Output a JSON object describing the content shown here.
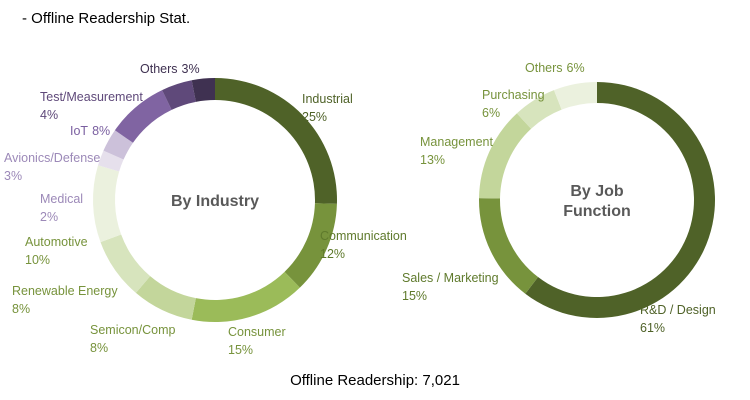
{
  "header": {
    "title": "- Offline Readership Stat."
  },
  "footer": {
    "text": "Offline Readership: 7,021"
  },
  "chart_data": [
    {
      "type": "pie",
      "center_label": [
        "By Industry"
      ],
      "categories": [
        "Industrial",
        "Communication",
        "Consumer",
        "Semicon/Comp",
        "Renewable Energy",
        "Automotive",
        "Medical",
        "Avionics/Defense",
        "IoT",
        "Test/Measurement",
        "Others"
      ],
      "values": [
        25,
        12,
        15,
        8,
        8,
        10,
        2,
        3,
        8,
        4,
        3
      ],
      "value_labels": [
        "25%",
        "12%",
        "15%",
        "8%",
        "8%",
        "10%",
        "2%",
        "3%",
        "8%",
        "4%",
        "3%"
      ],
      "colors": [
        "#4f6228",
        "#77933c",
        "#9bbb59",
        "#c3d69b",
        "#d7e4bd",
        "#ebf1de",
        "#e6e0ec",
        "#ccc1da",
        "#8064a2",
        "#5f497a",
        "#3f3151"
      ]
    },
    {
      "type": "pie",
      "center_label": [
        "By Job",
        "Function"
      ],
      "categories": [
        "R&D / Design",
        "Sales / Marketing",
        "Management",
        "Purchasing",
        "Others"
      ],
      "values": [
        61,
        15,
        13,
        6,
        6
      ],
      "value_labels": [
        "61%",
        "15%",
        "13%",
        "6%",
        "6%"
      ],
      "colors": [
        "#4f6228",
        "#77933c",
        "#c3d69b",
        "#d7e4bd",
        "#ebf1de"
      ]
    }
  ]
}
